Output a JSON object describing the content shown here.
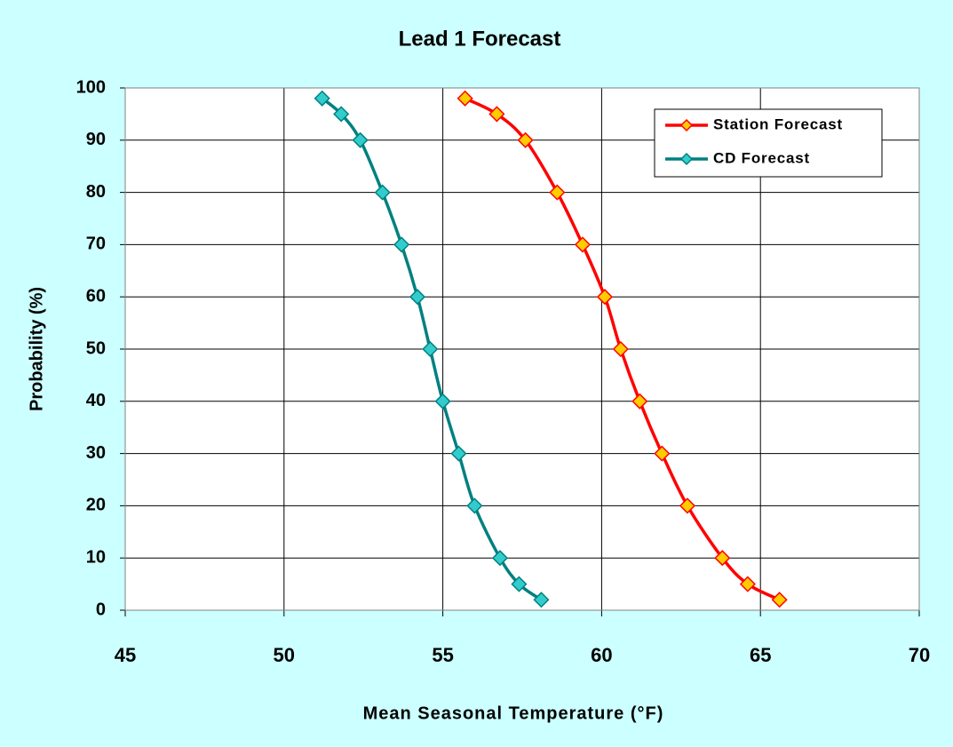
{
  "chart_data": {
    "type": "line",
    "title": "Lead 1 Forecast",
    "x_label": "Mean Seasonal Temperature (°F)",
    "y_label": "Probability (%)",
    "xlim": [
      45,
      70
    ],
    "xticks": [
      45,
      50,
      55,
      60,
      65,
      70
    ],
    "ylim": [
      0,
      100
    ],
    "yticks": [
      0,
      10,
      20,
      30,
      40,
      50,
      60,
      70,
      80,
      90,
      100
    ],
    "grid": true,
    "legend": "top-right",
    "series": [
      {
        "name": "Station Forecast",
        "color": "#ff0000",
        "marker_color": "#ffcc00",
        "x": [
          55.7,
          56.7,
          57.6,
          58.6,
          59.4,
          60.1,
          60.6,
          61.2,
          61.9,
          62.7,
          63.8,
          64.6,
          65.6
        ],
        "values": [
          98,
          95,
          90,
          80,
          70,
          60,
          50,
          40,
          30,
          20,
          10,
          5,
          2
        ]
      },
      {
        "name": "CD Forecast",
        "color": "#008080",
        "marker_color": "#33cccc",
        "x": [
          51.2,
          51.8,
          52.4,
          53.1,
          53.7,
          54.2,
          54.6,
          55.0,
          55.5,
          56.0,
          56.8,
          57.4,
          58.1
        ],
        "values": [
          98,
          95,
          90,
          80,
          70,
          60,
          50,
          40,
          30,
          20,
          10,
          5,
          2
        ]
      }
    ]
  }
}
